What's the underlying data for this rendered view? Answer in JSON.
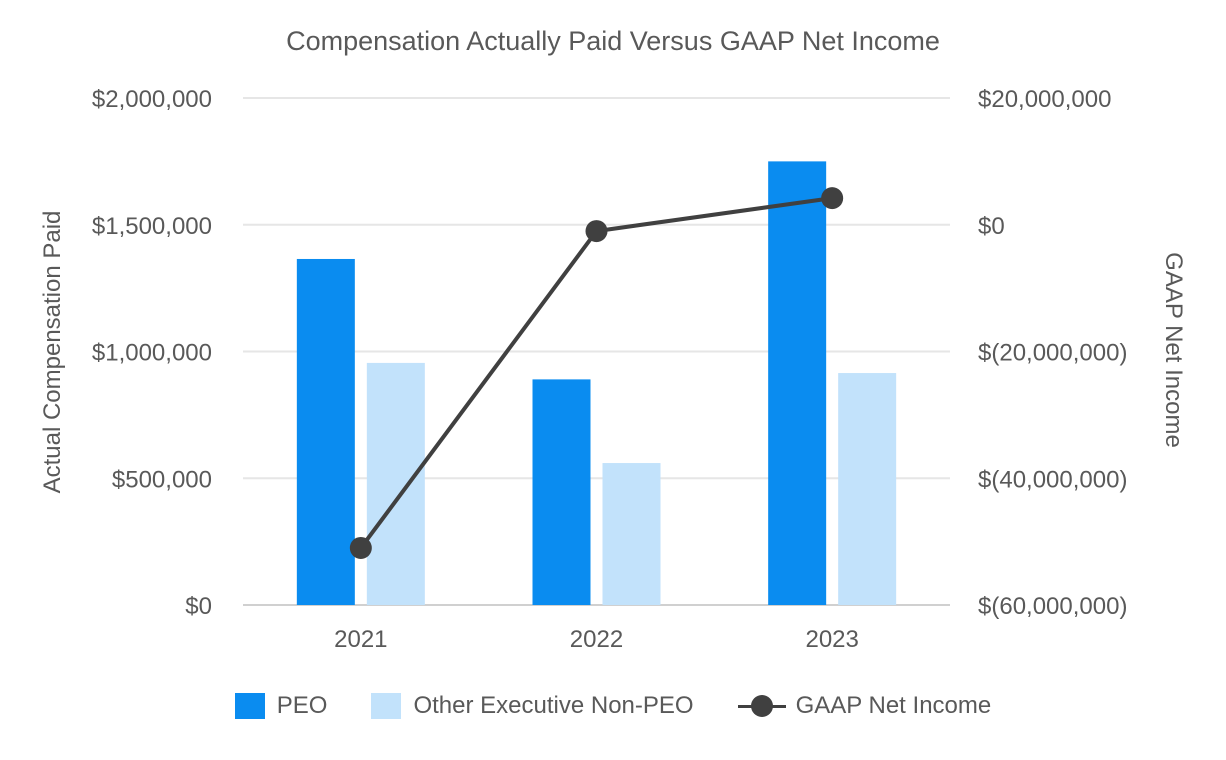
{
  "chart_data": {
    "type": "bar",
    "title": "Compensation Actually Paid Versus GAAP Net Income",
    "categories": [
      "2021",
      "2022",
      "2023"
    ],
    "series": [
      {
        "name": "PEO",
        "kind": "bar",
        "axis": "left",
        "color": "#0A8CF0",
        "values": [
          1365000,
          890000,
          1750000
        ]
      },
      {
        "name": "Other Executive Non-PEO",
        "kind": "bar",
        "axis": "left",
        "color": "#C2E2FB",
        "values": [
          955000,
          560000,
          915000
        ]
      },
      {
        "name": "GAAP Net Income",
        "kind": "line",
        "axis": "right",
        "color": "#404040",
        "values": [
          -51000000,
          -1000000,
          4200000
        ]
      }
    ],
    "ylabel": "Actual Compensation Paid",
    "y2label": "GAAP Net Income",
    "ylim": [
      0,
      2000000
    ],
    "y2lim": [
      -60000000,
      20000000
    ],
    "yticks": [
      {
        "value": 0,
        "label": "$0"
      },
      {
        "value": 500000,
        "label": "$500,000"
      },
      {
        "value": 1000000,
        "label": "$1,000,000"
      },
      {
        "value": 1500000,
        "label": "$1,500,000"
      },
      {
        "value": 2000000,
        "label": "$2,000,000"
      }
    ],
    "y2ticks": [
      {
        "value": -60000000,
        "label": "$(60,000,000)"
      },
      {
        "value": -40000000,
        "label": "$(40,000,000)"
      },
      {
        "value": -20000000,
        "label": "$(20,000,000)"
      },
      {
        "value": 0,
        "label": "$0"
      },
      {
        "value": 20000000,
        "label": "$20,000,000"
      }
    ],
    "grid": true,
    "legend_position": "bottom"
  }
}
